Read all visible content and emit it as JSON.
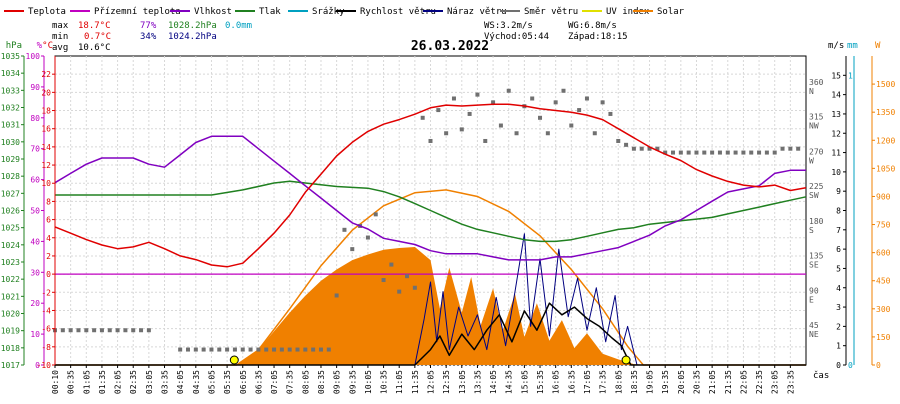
{
  "chart_data": {
    "type": "line",
    "title": "26.03.2022",
    "legend": [
      {
        "name": "Teplota",
        "color": "#e00000"
      },
      {
        "name": "Přízemní teplota",
        "color": "#c000c0"
      },
      {
        "name": "Vlhkost",
        "color": "#8000c0"
      },
      {
        "name": "Tlak",
        "color": "#208020"
      },
      {
        "name": "Srážky",
        "color": "#00a0c0"
      },
      {
        "name": "Rychlost větru",
        "color": "#000000"
      },
      {
        "name": "Náraz větru",
        "color": "#000080"
      },
      {
        "name": "Směr větru",
        "color": "#707070"
      },
      {
        "name": "UV index",
        "color": "#e0e000"
      },
      {
        "name": "Solar",
        "color": "#f08000"
      }
    ],
    "stats": {
      "max": {
        "label": "max",
        "temp": "18.7°C",
        "hum": "77%",
        "press": "1028.2hPa",
        "rain": "0.0mm"
      },
      "min": {
        "label": "min",
        "temp": "0.7°C",
        "hum": "34%",
        "press": "1024.2hPa"
      },
      "avg": {
        "label": "avg",
        "temp": "10.6°C"
      }
    },
    "wind_info": {
      "ws": "WS:3.2m/s",
      "wg": "WG:6.8m/s",
      "sunrise": "Východ:05:44",
      "sunset": "Západ:18:15"
    },
    "axes": {
      "hpa": {
        "unit": "hPa",
        "color": "#208020",
        "range": [
          1017,
          1035
        ],
        "ticks": [
          1017,
          1018,
          1019,
          1020,
          1021,
          1022,
          1023,
          1024,
          1025,
          1026,
          1027,
          1028,
          1029,
          1030,
          1031,
          1032,
          1033,
          1034,
          1035
        ]
      },
      "percent": {
        "unit": "%",
        "color": "#c000c0",
        "range": [
          0,
          100
        ],
        "ticks": [
          0,
          10,
          20,
          30,
          40,
          50,
          60,
          70,
          80,
          90,
          100
        ]
      },
      "celsius": {
        "unit": "°C",
        "color": "#e00000",
        "range": [
          -10,
          24
        ],
        "ticks": [
          -10,
          -8,
          -6,
          -4,
          -2,
          0,
          2,
          4,
          6,
          8,
          10,
          12,
          14,
          16,
          18,
          20,
          22
        ]
      },
      "direction": {
        "ticks": [
          {
            "v": 45,
            "t": "NE"
          },
          {
            "v": 90,
            "t": "E"
          },
          {
            "v": 135,
            "t": "SE"
          },
          {
            "v": 180,
            "t": "S"
          },
          {
            "v": 225,
            "t": "SW"
          },
          {
            "v": 270,
            "t": "W"
          },
          {
            "v": 315,
            "t": "NW"
          },
          {
            "v": 360,
            "t": "N"
          }
        ]
      },
      "ms": {
        "unit": "m/s",
        "range": [
          0,
          16
        ],
        "ticks": [
          0,
          1,
          2,
          3,
          4,
          5,
          6,
          7,
          8,
          9,
          10,
          11,
          12,
          13,
          14,
          15
        ]
      },
      "mm": {
        "unit": "mm",
        "color": "#00a0c0",
        "ticks": [
          0,
          1
        ]
      },
      "wm2": {
        "unit": "W",
        "color": "#f08000",
        "ticks": [
          0,
          150,
          300,
          450,
          600,
          750,
          900,
          1050,
          1200,
          1350,
          1500
        ]
      },
      "time": {
        "label": "čas",
        "ticks": [
          "00:10",
          "00:35",
          "01:05",
          "01:35",
          "02:05",
          "02:35",
          "03:05",
          "03:35",
          "04:05",
          "04:35",
          "05:05",
          "05:35",
          "06:05",
          "06:35",
          "07:05",
          "07:35",
          "08:05",
          "08:35",
          "09:05",
          "09:35",
          "10:05",
          "10:35",
          "11:05",
          "11:35",
          "12:05",
          "12:35",
          "13:05",
          "13:35",
          "14:05",
          "14:35",
          "15:05",
          "15:35",
          "16:05",
          "16:35",
          "17:05",
          "17:35",
          "18:05",
          "18:35",
          "19:05",
          "19:35",
          "20:05",
          "20:35",
          "21:05",
          "21:35",
          "22:05",
          "22:35",
          "23:05",
          "23:35"
        ]
      }
    },
    "series": {
      "temperature": [
        [
          0,
          5.2
        ],
        [
          0.5,
          4.5
        ],
        [
          1,
          3.8
        ],
        [
          1.5,
          3.2
        ],
        [
          2,
          2.8
        ],
        [
          2.5,
          3.0
        ],
        [
          3,
          3.5
        ],
        [
          3.5,
          2.8
        ],
        [
          4,
          2.0
        ],
        [
          4.5,
          1.6
        ],
        [
          5,
          1.0
        ],
        [
          5.5,
          0.8
        ],
        [
          6,
          1.2
        ],
        [
          6.5,
          2.8
        ],
        [
          7,
          4.5
        ],
        [
          7.5,
          6.5
        ],
        [
          8,
          9.0
        ],
        [
          8.5,
          11.0
        ],
        [
          9,
          13.0
        ],
        [
          9.5,
          14.5
        ],
        [
          10,
          15.7
        ],
        [
          10.5,
          16.5
        ],
        [
          11,
          17.0
        ],
        [
          11.5,
          17.6
        ],
        [
          12,
          18.3
        ],
        [
          12.5,
          18.6
        ],
        [
          13,
          18.5
        ],
        [
          13.5,
          18.6
        ],
        [
          14,
          18.7
        ],
        [
          14.5,
          18.7
        ],
        [
          15,
          18.5
        ],
        [
          15.5,
          18.2
        ],
        [
          16,
          18.0
        ],
        [
          16.5,
          17.8
        ],
        [
          17,
          17.5
        ],
        [
          17.5,
          17.0
        ],
        [
          18,
          16.0
        ],
        [
          18.5,
          15.0
        ],
        [
          19,
          14.0
        ],
        [
          19.5,
          13.2
        ],
        [
          20,
          12.5
        ],
        [
          20.5,
          11.5
        ],
        [
          21,
          10.8
        ],
        [
          21.5,
          10.2
        ],
        [
          22,
          9.8
        ],
        [
          22.5,
          9.6
        ],
        [
          23,
          9.8
        ],
        [
          23.5,
          9.2
        ],
        [
          24,
          9.5
        ]
      ],
      "ground_temperature": [
        [
          0,
          0
        ],
        [
          24,
          0
        ]
      ],
      "humidity": [
        [
          0,
          59
        ],
        [
          0.5,
          62
        ],
        [
          1,
          65
        ],
        [
          1.5,
          67
        ],
        [
          2,
          67
        ],
        [
          2.5,
          67
        ],
        [
          3,
          65
        ],
        [
          3.5,
          64
        ],
        [
          4,
          68
        ],
        [
          4.5,
          72
        ],
        [
          5,
          74
        ],
        [
          5.5,
          74
        ],
        [
          6,
          74
        ],
        [
          6.5,
          70
        ],
        [
          7,
          66
        ],
        [
          7.5,
          62
        ],
        [
          8,
          58
        ],
        [
          8.5,
          54
        ],
        [
          9,
          50
        ],
        [
          9.5,
          46
        ],
        [
          10,
          44
        ],
        [
          10.5,
          41
        ],
        [
          11,
          40
        ],
        [
          11.5,
          39
        ],
        [
          12,
          37
        ],
        [
          12.5,
          36
        ],
        [
          13,
          36
        ],
        [
          13.5,
          36
        ],
        [
          14,
          35
        ],
        [
          14.5,
          34
        ],
        [
          15,
          34
        ],
        [
          15.5,
          34
        ],
        [
          16,
          35
        ],
        [
          16.5,
          35
        ],
        [
          17,
          36
        ],
        [
          17.5,
          37
        ],
        [
          18,
          38
        ],
        [
          18.5,
          40
        ],
        [
          19,
          42
        ],
        [
          19.5,
          45
        ],
        [
          20,
          47
        ],
        [
          20.5,
          50
        ],
        [
          21,
          53
        ],
        [
          21.5,
          56
        ],
        [
          22,
          57
        ],
        [
          22.5,
          58
        ],
        [
          23,
          62
        ],
        [
          23.5,
          63
        ],
        [
          24,
          63
        ]
      ],
      "pressure": [
        [
          0,
          1026.9
        ],
        [
          1,
          1026.9
        ],
        [
          2,
          1026.9
        ],
        [
          3,
          1026.9
        ],
        [
          4,
          1026.9
        ],
        [
          5,
          1026.9
        ],
        [
          6,
          1027.2
        ],
        [
          7,
          1027.6
        ],
        [
          7.5,
          1027.7
        ],
        [
          8,
          1027.6
        ],
        [
          9,
          1027.4
        ],
        [
          10,
          1027.3
        ],
        [
          10.5,
          1027.1
        ],
        [
          11,
          1026.8
        ],
        [
          11.5,
          1026.4
        ],
        [
          12,
          1026.0
        ],
        [
          12.5,
          1025.6
        ],
        [
          13,
          1025.2
        ],
        [
          13.5,
          1024.9
        ],
        [
          14,
          1024.7
        ],
        [
          14.5,
          1024.5
        ],
        [
          15,
          1024.3
        ],
        [
          15.5,
          1024.2
        ],
        [
          16,
          1024.2
        ],
        [
          16.5,
          1024.3
        ],
        [
          17,
          1024.5
        ],
        [
          17.5,
          1024.7
        ],
        [
          18,
          1024.9
        ],
        [
          18.5,
          1025.0
        ],
        [
          19,
          1025.2
        ],
        [
          19.5,
          1025.3
        ],
        [
          20,
          1025.4
        ],
        [
          20.5,
          1025.5
        ],
        [
          21,
          1025.6
        ],
        [
          21.5,
          1025.8
        ],
        [
          22,
          1026.0
        ],
        [
          22.5,
          1026.2
        ],
        [
          23,
          1026.4
        ],
        [
          23.5,
          1026.6
        ],
        [
          24,
          1026.8
        ]
      ],
      "wind_speed": [
        [
          0,
          0
        ],
        [
          11.5,
          0
        ],
        [
          12,
          0.8
        ],
        [
          12.3,
          1.5
        ],
        [
          12.6,
          0.5
        ],
        [
          13,
          1.6
        ],
        [
          13.4,
          0.8
        ],
        [
          13.8,
          1.8
        ],
        [
          14.2,
          2.6
        ],
        [
          14.6,
          1.2
        ],
        [
          15,
          2.8
        ],
        [
          15.4,
          1.8
        ],
        [
          15.8,
          3.2
        ],
        [
          16.2,
          2.6
        ],
        [
          16.6,
          3.0
        ],
        [
          17,
          2.4
        ],
        [
          17.4,
          2.0
        ],
        [
          17.8,
          1.4
        ],
        [
          18.1,
          1.0
        ],
        [
          18.4,
          0
        ],
        [
          24,
          0
        ]
      ],
      "wind_gust": [
        [
          0,
          0
        ],
        [
          11.5,
          0
        ],
        [
          11.8,
          2.4
        ],
        [
          12.0,
          4.3
        ],
        [
          12.2,
          1.2
        ],
        [
          12.4,
          3.8
        ],
        [
          12.6,
          0.8
        ],
        [
          12.9,
          3.0
        ],
        [
          13.2,
          1.5
        ],
        [
          13.5,
          2.6
        ],
        [
          13.8,
          0.8
        ],
        [
          14.1,
          3.5
        ],
        [
          14.4,
          1.0
        ],
        [
          14.7,
          3.8
        ],
        [
          15.0,
          6.8
        ],
        [
          15.2,
          2.0
        ],
        [
          15.5,
          5.5
        ],
        [
          15.8,
          1.5
        ],
        [
          16.1,
          6.0
        ],
        [
          16.4,
          2.5
        ],
        [
          16.7,
          4.5
        ],
        [
          17.0,
          1.8
        ],
        [
          17.3,
          4.0
        ],
        [
          17.6,
          1.2
        ],
        [
          17.9,
          3.6
        ],
        [
          18.1,
          0.8
        ],
        [
          18.3,
          2.0
        ],
        [
          18.6,
          0
        ],
        [
          24,
          0
        ]
      ],
      "wind_direction_hours": [
        0,
        0.25,
        0.5,
        0.75,
        1,
        1.25,
        1.5,
        1.75,
        2,
        2.25,
        2.5,
        2.75,
        3,
        4,
        4.25,
        4.5,
        4.75,
        5,
        5.25,
        5.5,
        5.75,
        6,
        6.25,
        6.5,
        6.75,
        7,
        7.25,
        7.5,
        7.75,
        8,
        8.25,
        8.5,
        8.75,
        9,
        9.25,
        9.5,
        9.75,
        10,
        10.25,
        10.5,
        10.75,
        11,
        11.25,
        11.5,
        11.75,
        12,
        12.25,
        12.5,
        12.75,
        13,
        13.25,
        13.5,
        13.75,
        14,
        14.25,
        14.5,
        14.75,
        15,
        15.25,
        15.5,
        15.75,
        16,
        16.25,
        16.5,
        16.75,
        17,
        17.25,
        17.5,
        17.75,
        18,
        18.25,
        18.5,
        18.75,
        19,
        19.25,
        19.5,
        19.75,
        20,
        20.25,
        20.5,
        20.75,
        21,
        21.25,
        21.5,
        21.75,
        22,
        22.25,
        22.5,
        22.75,
        23,
        23.25,
        23.5,
        23.75
      ],
      "wind_direction_deg": [
        45,
        45,
        45,
        45,
        45,
        45,
        45,
        45,
        45,
        45,
        45,
        45,
        45,
        20,
        20,
        20,
        20,
        20,
        20,
        20,
        20,
        20,
        20,
        20,
        20,
        20,
        20,
        20,
        20,
        20,
        20,
        20,
        20,
        90,
        175,
        150,
        180,
        165,
        195,
        110,
        130,
        95,
        115,
        100,
        320,
        290,
        330,
        300,
        345,
        305,
        325,
        350,
        290,
        340,
        310,
        355,
        300,
        335,
        345,
        320,
        300,
        340,
        355,
        310,
        330,
        345,
        300,
        340,
        325,
        290,
        285,
        280,
        280,
        280,
        280,
        275,
        275,
        275,
        275,
        275,
        275,
        275,
        275,
        275,
        275,
        275,
        275,
        275,
        275,
        275,
        280,
        280,
        280
      ],
      "solar": [
        [
          0,
          0
        ],
        [
          5.8,
          0
        ],
        [
          6,
          20
        ],
        [
          6.5,
          80
        ],
        [
          7,
          180
        ],
        [
          7.5,
          280
        ],
        [
          8,
          370
        ],
        [
          8.5,
          450
        ],
        [
          9,
          510
        ],
        [
          9.5,
          560
        ],
        [
          10,
          590
        ],
        [
          10.5,
          615
        ],
        [
          11,
          625
        ],
        [
          11.5,
          630
        ],
        [
          12,
          560
        ],
        [
          12.3,
          300
        ],
        [
          12.6,
          520
        ],
        [
          13,
          280
        ],
        [
          13.3,
          470
        ],
        [
          13.6,
          210
        ],
        [
          14,
          410
        ],
        [
          14.3,
          180
        ],
        [
          14.7,
          380
        ],
        [
          15,
          150
        ],
        [
          15.4,
          330
        ],
        [
          15.8,
          130
        ],
        [
          16.2,
          240
        ],
        [
          16.6,
          90
        ],
        [
          17,
          170
        ],
        [
          17.5,
          60
        ],
        [
          18,
          30
        ],
        [
          18.5,
          5
        ],
        [
          19,
          0
        ],
        [
          24,
          0
        ]
      ],
      "solar_clear": [
        [
          0,
          0
        ],
        [
          5.8,
          0
        ],
        [
          6.5,
          80
        ],
        [
          7.5,
          300
        ],
        [
          8.5,
          530
        ],
        [
          9.5,
          720
        ],
        [
          10.5,
          850
        ],
        [
          11.5,
          920
        ],
        [
          12.5,
          935
        ],
        [
          13.5,
          900
        ],
        [
          14.5,
          820
        ],
        [
          15.5,
          690
        ],
        [
          16.5,
          510
        ],
        [
          17.5,
          300
        ],
        [
          18.3,
          100
        ],
        [
          18.8,
          0
        ],
        [
          24,
          0
        ]
      ]
    },
    "sun_markers_hours": [
      5.73,
      18.25
    ]
  }
}
